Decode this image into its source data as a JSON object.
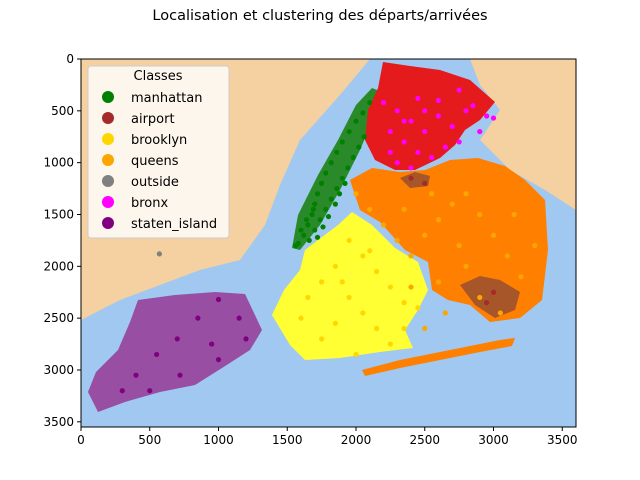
{
  "chart_data": {
    "type": "scatter",
    "title": "Localisation et clustering des départs/arrivées",
    "xlabel": "",
    "ylabel": "",
    "xlim": [
      0,
      3600
    ],
    "ylim": [
      3550,
      0
    ],
    "y_inverted": true,
    "grid": false,
    "background": "map of New York City boroughs",
    "xticks": [
      0,
      500,
      1000,
      1500,
      2000,
      2500,
      3000,
      3500
    ],
    "yticks": [
      0,
      500,
      1000,
      1500,
      2000,
      2500,
      3000,
      3500
    ],
    "legend": {
      "title": "Classes",
      "placement": "top-left",
      "entries": [
        {
          "name": "manhattan",
          "color": "#008000"
        },
        {
          "name": "airport",
          "color": "#a52a2a"
        },
        {
          "name": "brooklyn",
          "color": "#ffd700"
        },
        {
          "name": "queens",
          "color": "#ffa500"
        },
        {
          "name": "outside",
          "color": "#808080"
        },
        {
          "name": "bronx",
          "color": "#ff00ff"
        },
        {
          "name": "staten_island",
          "color": "#800080"
        }
      ]
    },
    "series": [
      {
        "name": "manhattan",
        "color": "#008000",
        "points": [
          [
            1580,
            1780
          ],
          [
            1620,
            1700
          ],
          [
            1650,
            1600
          ],
          [
            1680,
            1500
          ],
          [
            1700,
            1400
          ],
          [
            1720,
            1300
          ],
          [
            1750,
            1200
          ],
          [
            1780,
            1100
          ],
          [
            1820,
            1000
          ],
          [
            1860,
            900
          ],
          [
            1900,
            800
          ],
          [
            1950,
            700
          ],
          [
            2000,
            600
          ],
          [
            2050,
            520
          ],
          [
            2100,
            420
          ],
          [
            1660,
            1750
          ],
          [
            1700,
            1650
          ],
          [
            1740,
            1550
          ],
          [
            1780,
            1450
          ],
          [
            1820,
            1350
          ],
          [
            1860,
            1250
          ],
          [
            1900,
            1150
          ],
          [
            1940,
            1050
          ],
          [
            1980,
            950
          ],
          [
            2020,
            850
          ],
          [
            2060,
            750
          ],
          [
            1600,
            1650
          ],
          [
            1640,
            1550
          ],
          [
            1690,
            1450
          ],
          [
            1760,
            1620
          ],
          [
            1800,
            1520
          ],
          [
            1720,
            1720
          ],
          [
            1850,
            1400
          ],
          [
            1880,
            1300
          ],
          [
            1920,
            1200
          ],
          [
            1560,
            1800
          ]
        ]
      },
      {
        "name": "bronx",
        "color": "#ff00ff",
        "points": [
          [
            2200,
            420
          ],
          [
            2300,
            500
          ],
          [
            2400,
            600
          ],
          [
            2500,
            700
          ],
          [
            2600,
            550
          ],
          [
            2700,
            650
          ],
          [
            2800,
            500
          ],
          [
            2900,
            700
          ],
          [
            3000,
            570
          ],
          [
            2250,
            700
          ],
          [
            2350,
            800
          ],
          [
            2450,
            900
          ],
          [
            2550,
            950
          ],
          [
            2650,
            850
          ],
          [
            2750,
            800
          ],
          [
            2300,
            1000
          ],
          [
            2400,
            1050
          ],
          [
            2500,
            500
          ],
          [
            2600,
            400
          ],
          [
            2750,
            300
          ],
          [
            2850,
            450
          ],
          [
            2950,
            550
          ],
          [
            2250,
            900
          ],
          [
            2350,
            600
          ],
          [
            2450,
            380
          ]
        ]
      },
      {
        "name": "queens",
        "color": "#ffa500",
        "points": [
          [
            2000,
            1300
          ],
          [
            2100,
            1450
          ],
          [
            2200,
            1600
          ],
          [
            2300,
            1750
          ],
          [
            2400,
            1900
          ],
          [
            2500,
            1700
          ],
          [
            2600,
            1550
          ],
          [
            2700,
            1400
          ],
          [
            2800,
            1300
          ],
          [
            2900,
            1500
          ],
          [
            3000,
            1700
          ],
          [
            3100,
            1900
          ],
          [
            3200,
            2100
          ],
          [
            2800,
            2000
          ],
          [
            2600,
            2150
          ],
          [
            2400,
            2200
          ],
          [
            2900,
            2300
          ],
          [
            3050,
            2450
          ],
          [
            2650,
            2450
          ],
          [
            2500,
            2600
          ],
          [
            3300,
            1800
          ],
          [
            2750,
            1800
          ],
          [
            2350,
            1450
          ],
          [
            2550,
            1300
          ],
          [
            3150,
            1500
          ]
        ]
      },
      {
        "name": "brooklyn",
        "color": "#ffd700",
        "points": [
          [
            1950,
            1750
          ],
          [
            2050,
            1900
          ],
          [
            2150,
            2050
          ],
          [
            2250,
            2200
          ],
          [
            2350,
            2350
          ],
          [
            1850,
            2000
          ],
          [
            1750,
            2150
          ],
          [
            1650,
            2300
          ],
          [
            1950,
            2300
          ],
          [
            2050,
            2450
          ],
          [
            2150,
            2600
          ],
          [
            2250,
            2750
          ],
          [
            1850,
            2550
          ],
          [
            1750,
            2700
          ],
          [
            2350,
            2600
          ],
          [
            2450,
            2400
          ],
          [
            1600,
            2500
          ],
          [
            2100,
            1850
          ],
          [
            1900,
            2150
          ],
          [
            2000,
            2850
          ]
        ]
      },
      {
        "name": "airport",
        "color": "#a52a2a",
        "points": [
          [
            2400,
            1150
          ],
          [
            2500,
            1200
          ],
          [
            3000,
            2250
          ],
          [
            2950,
            2350
          ]
        ]
      },
      {
        "name": "outside",
        "color": "#808080",
        "points": [
          [
            570,
            1880
          ]
        ]
      },
      {
        "name": "staten_island",
        "color": "#800080",
        "points": [
          [
            1000,
            2320
          ],
          [
            1150,
            2500
          ],
          [
            1200,
            2700
          ],
          [
            1000,
            2900
          ],
          [
            850,
            2500
          ],
          [
            700,
            2700
          ],
          [
            550,
            2850
          ],
          [
            400,
            3050
          ],
          [
            300,
            3200
          ],
          [
            500,
            3200
          ],
          [
            720,
            3050
          ],
          [
            950,
            2750
          ]
        ]
      }
    ]
  }
}
